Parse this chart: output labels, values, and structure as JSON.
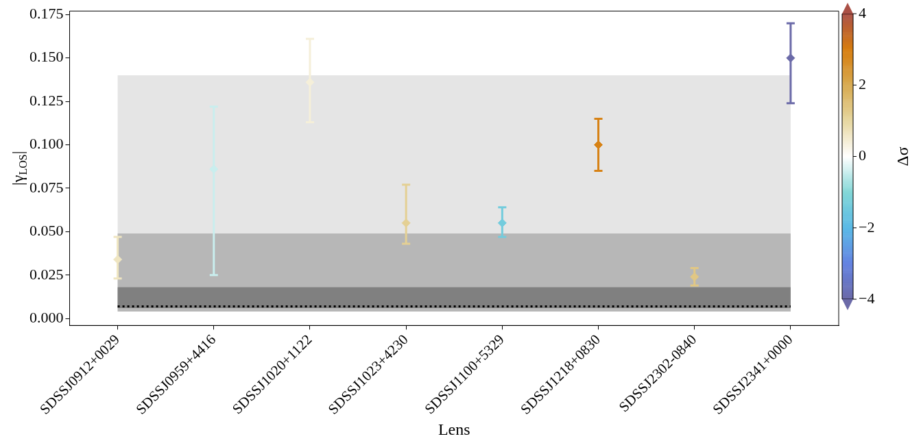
{
  "chart_data": {
    "type": "scatter",
    "xlabel": "Lens",
    "ylabel": "|γ$_{LOS}$|",
    "clabel": "Δσ",
    "categories": [
      "SDSSJ0912+0029",
      "SDSSJ0959+4416",
      "SDSSJ1020+1122",
      "SDSSJ1023+4230",
      "SDSSJ1100+5329",
      "SDSSJ1218+0830",
      "SDSSJ2302-0840",
      "SDSSJ2341+0000"
    ],
    "values": [
      0.034,
      0.086,
      0.136,
      0.055,
      0.055,
      0.1,
      0.024,
      0.15
    ],
    "errors": [
      [
        0.023,
        0.047
      ],
      [
        0.025,
        0.122
      ],
      [
        0.113,
        0.161
      ],
      [
        0.043,
        0.077
      ],
      [
        0.047,
        0.064
      ],
      [
        0.085,
        0.115
      ],
      [
        0.019,
        0.029
      ],
      [
        0.124,
        0.17
      ]
    ],
    "cvalues": [
      0.65,
      -0.43,
      0.4,
      1.15,
      -1.37,
      2.9,
      1.35,
      -4
    ],
    "marker": "diamond",
    "clim": [
      -4,
      4
    ],
    "cticks": [
      -4,
      -2,
      0,
      2,
      4
    ],
    "ylim": [
      -0.004,
      0.177
    ],
    "yticks": [
      {
        "value": 0,
        "label": "0.000"
      },
      0.025,
      {
        "value": 0.05,
        "label": "0.050"
      },
      0.075,
      {
        "value": 0.1,
        "label": "0.100"
      },
      0.125,
      {
        "value": 0.15,
        "label": "0.150"
      },
      0.175
    ],
    "bands": [
      {
        "axis": "y",
        "from": 0.004,
        "to": 0.14,
        "color": "#e5e5e5"
      },
      {
        "axis": "y",
        "from": 0.004,
        "to": 0.049,
        "color": "#b7b7b7"
      },
      {
        "axis": "y",
        "from": 0.006,
        "to": 0.018,
        "color": "#808080"
      }
    ],
    "ref_lines": [
      {
        "axis": "y",
        "value": 0.007,
        "color": "#000000",
        "line_style": "dotted"
      }
    ],
    "grid": false,
    "legend": false
  }
}
